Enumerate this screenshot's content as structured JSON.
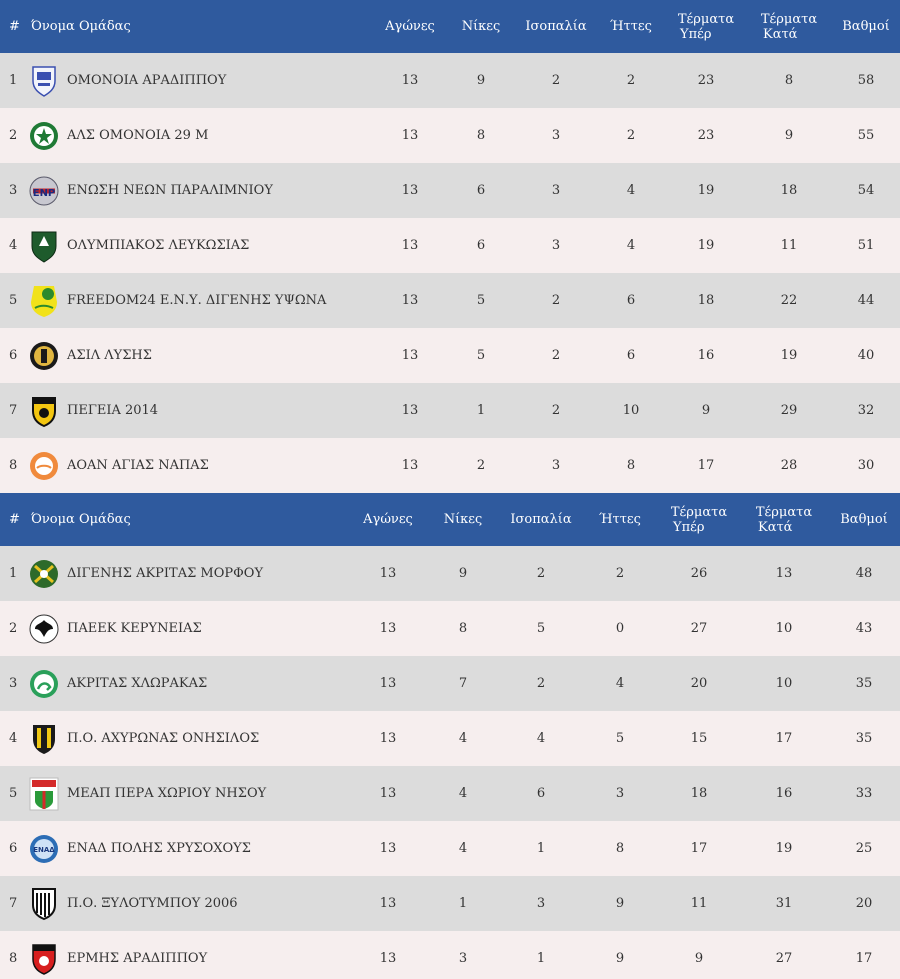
{
  "header_a": {
    "hash": "#",
    "name": "Όνομα Ομάδας",
    "played": "Αγώνες",
    "wins": "Νίκες",
    "draws": "Ισοπαλία",
    "losses": "Ήττες",
    "gf_line1": "Τέρματα",
    "gf_line2": "Υπέρ",
    "ga_line1": "Τέρματα",
    "ga_line2": "Κατά",
    "points": "Βαθμοί"
  },
  "header_b": {
    "hash": "#",
    "name": "Όνομα Ομάδας",
    "played": "Αγώνες",
    "wins": "Νίκες",
    "draws": "Ισοπαλία",
    "losses": "Ήττες",
    "gf_line1": "Τέρματα",
    "gf_line2": "Υπέρ",
    "ga_line1": "Τέρματα",
    "ga_line2": "Κατά",
    "points": "Βαθμοί"
  },
  "table_a": [
    {
      "pos": "1",
      "team": "ΟΜΟΝΟΙΑ ΑΡΑΔΙΠΠΟΥ",
      "logo": "omonoia-aradippou-crest",
      "played": "13",
      "wins": "9",
      "draws": "2",
      "losses": "2",
      "gf": "23",
      "ga": "8",
      "points": "58"
    },
    {
      "pos": "2",
      "team": "ΑΛΣ ΟΜΟΝΟΙΑ 29 Μ",
      "logo": "als-omonoia-crest",
      "played": "13",
      "wins": "8",
      "draws": "3",
      "losses": "2",
      "gf": "23",
      "ga": "9",
      "points": "55"
    },
    {
      "pos": "3",
      "team": "ΕΝΩΣΗ ΝΕΩΝ ΠΑΡΑΛΙΜΝΙΟΥ",
      "logo": "enp-crest",
      "played": "13",
      "wins": "6",
      "draws": "3",
      "losses": "4",
      "gf": "19",
      "ga": "18",
      "points": "54"
    },
    {
      "pos": "4",
      "team": "ΟΛΥΜΠΙΑΚΟΣ ΛΕΥΚΩΣΙΑΣ",
      "logo": "olympiakos-crest",
      "played": "13",
      "wins": "6",
      "draws": "3",
      "losses": "4",
      "gf": "19",
      "ga": "11",
      "points": "51"
    },
    {
      "pos": "5",
      "team": "FREEDOM24 Ε.Ν.Υ. ΔΙΓΕΝΗΣ ΥΨΩΝΑ",
      "logo": "digenis-ypsona-crest",
      "played": "13",
      "wins": "5",
      "draws": "2",
      "losses": "6",
      "gf": "18",
      "ga": "22",
      "points": "44"
    },
    {
      "pos": "6",
      "team": "ΑΣΙΛ ΛΥΣΗΣ",
      "logo": "asil-lysis-crest",
      "played": "13",
      "wins": "5",
      "draws": "2",
      "losses": "6",
      "gf": "16",
      "ga": "19",
      "points": "40"
    },
    {
      "pos": "7",
      "team": "ΠΕΓΕΙΑ 2014",
      "logo": "pegeia-crest",
      "played": "13",
      "wins": "1",
      "draws": "2",
      "losses": "10",
      "gf": "9",
      "ga": "29",
      "points": "32"
    },
    {
      "pos": "8",
      "team": "ΑΟΑΝ ΑΓΙΑΣ ΝΑΠΑΣ",
      "logo": "aoan-crest",
      "played": "13",
      "wins": "2",
      "draws": "3",
      "losses": "8",
      "gf": "17",
      "ga": "28",
      "points": "30"
    }
  ],
  "table_b": [
    {
      "pos": "1",
      "team": "ΔΙΓΕΝΗΣ ΑΚΡΙΤΑΣ ΜΟΡΦΟΥ",
      "logo": "digenis-morfou-crest",
      "played": "13",
      "wins": "9",
      "draws": "2",
      "losses": "2",
      "gf": "26",
      "ga": "13",
      "points": "48"
    },
    {
      "pos": "2",
      "team": "ΠΑΕΕΚ ΚΕΡΥΝΕΙΑΣ",
      "logo": "paeek-crest",
      "played": "13",
      "wins": "8",
      "draws": "5",
      "losses": "0",
      "gf": "27",
      "ga": "10",
      "points": "43"
    },
    {
      "pos": "3",
      "team": "ΑΚΡΙΤΑΣ ΧΛΩΡΑΚΑΣ",
      "logo": "akritas-crest",
      "played": "13",
      "wins": "7",
      "draws": "2",
      "losses": "4",
      "gf": "20",
      "ga": "10",
      "points": "35"
    },
    {
      "pos": "4",
      "team": "Π.Ο. ΑΧΥΡΩΝΑΣ ΟΝΗΣΙΛΟΣ",
      "logo": "achyronas-crest",
      "played": "13",
      "wins": "4",
      "draws": "4",
      "losses": "5",
      "gf": "15",
      "ga": "17",
      "points": "35"
    },
    {
      "pos": "5",
      "team": "ΜΕΑΠ ΠΕΡΑ ΧΩΡΙΟΥ ΝΗΣΟΥ",
      "logo": "meap-crest",
      "played": "13",
      "wins": "4",
      "draws": "6",
      "losses": "3",
      "gf": "18",
      "ga": "16",
      "points": "33"
    },
    {
      "pos": "6",
      "team": "ΕΝΑΔ ΠΟΛΗΣ ΧΡΥΣΟΧΟΥΣ",
      "logo": "enad-crest",
      "played": "13",
      "wins": "4",
      "draws": "1",
      "losses": "8",
      "gf": "17",
      "ga": "19",
      "points": "25"
    },
    {
      "pos": "7",
      "team": "Π.Ο. ΞΥΛΟΤΥΜΠΟΥ 2006",
      "logo": "xylotymbou-crest",
      "played": "13",
      "wins": "1",
      "draws": "3",
      "losses": "9",
      "gf": "11",
      "ga": "31",
      "points": "20"
    },
    {
      "pos": "8",
      "team": "ΕΡΜΗΣ ΑΡΑΔΙΠΠΟΥ",
      "logo": "ermis-crest",
      "played": "13",
      "wins": "3",
      "draws": "1",
      "losses": "9",
      "gf": "9",
      "ga": "27",
      "points": "17"
    }
  ],
  "colors": {
    "header_bg": "#2f5a9e",
    "row_odd": "#dcdcdc",
    "row_even": "#f6eeee"
  }
}
